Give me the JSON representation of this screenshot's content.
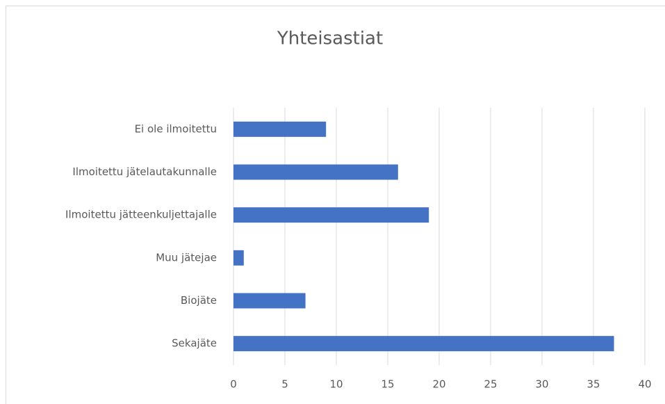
{
  "chart_data": {
    "type": "bar",
    "horizontal": true,
    "title": "Yhteisastiat",
    "categories": [
      "Ei ole ilmoitettu",
      "Ilmoitettu jätelautakunnalle",
      "Ilmoitettu jätteenkuljettajalle",
      "Muu jätejae",
      "Biojäte",
      "Sekajäte"
    ],
    "values": [
      9,
      16,
      19,
      1,
      7,
      37
    ],
    "color": "#4472c4",
    "xlim": [
      0,
      40
    ],
    "xticks": [
      0,
      5,
      10,
      15,
      20,
      25,
      30,
      35,
      40
    ],
    "grid": true
  }
}
